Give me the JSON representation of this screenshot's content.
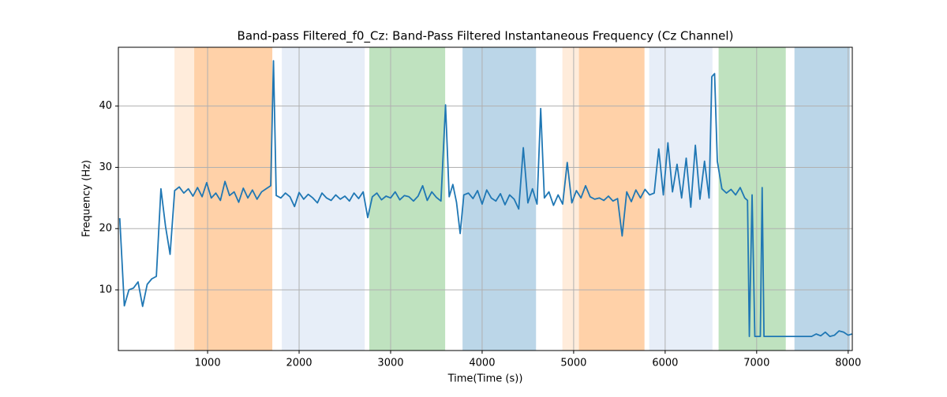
{
  "chart_data": {
    "type": "line",
    "title": "Band-pass Filtered_f0_Cz: Band-Pass Filtered Instantaneous Frequency (Cz Channel)",
    "x_label": "Time(Time (s))",
    "y_label": "Frequency (Hz)",
    "xlim": [
      25,
      8045
    ],
    "ylim": [
      0.1,
      49.6
    ],
    "xticks": [
      1000,
      2000,
      3000,
      4000,
      5000,
      6000,
      7000,
      8000
    ],
    "yticks": [
      10,
      20,
      30,
      40
    ],
    "grid": true,
    "color": "#1f77b4",
    "bands": [
      {
        "start": 638,
        "end": 1707,
        "color": "#ff7f0e",
        "opacity": 0.15
      },
      {
        "start": 854,
        "end": 1707,
        "color": "#ff7f0e",
        "opacity": 0.25
      },
      {
        "start": 1811,
        "end": 2717,
        "color": "#aec7e8",
        "opacity": 0.3
      },
      {
        "start": 2767,
        "end": 3596,
        "color": "#2ca02c",
        "opacity": 0.3
      },
      {
        "start": 3786,
        "end": 4589,
        "color": "#1f77b4",
        "opacity": 0.3
      },
      {
        "start": 4877,
        "end": 5774,
        "color": "#ff7f0e",
        "opacity": 0.15
      },
      {
        "start": 5058,
        "end": 5774,
        "color": "#ff7f0e",
        "opacity": 0.25
      },
      {
        "start": 5826,
        "end": 6517,
        "color": "#aec7e8",
        "opacity": 0.3
      },
      {
        "start": 6584,
        "end": 7318,
        "color": "#2ca02c",
        "opacity": 0.3
      },
      {
        "start": 7413,
        "end": 8018,
        "color": "#1f77b4",
        "opacity": 0.3
      }
    ],
    "x": [
      40,
      90,
      140,
      190,
      240,
      290,
      340,
      390,
      440,
      490,
      540,
      590,
      640,
      690,
      740,
      790,
      840,
      890,
      940,
      990,
      1040,
      1090,
      1140,
      1190,
      1240,
      1290,
      1340,
      1390,
      1440,
      1490,
      1540,
      1590,
      1640,
      1690,
      1720,
      1750,
      1800,
      1850,
      1900,
      1950,
      2000,
      2050,
      2100,
      2150,
      2200,
      2250,
      2300,
      2350,
      2400,
      2450,
      2500,
      2550,
      2600,
      2650,
      2700,
      2750,
      2800,
      2850,
      2900,
      2950,
      3000,
      3050,
      3100,
      3150,
      3200,
      3250,
      3300,
      3350,
      3400,
      3450,
      3500,
      3550,
      3600,
      3640,
      3680,
      3720,
      3760,
      3800,
      3850,
      3900,
      3950,
      4000,
      4050,
      4100,
      4150,
      4200,
      4250,
      4300,
      4350,
      4400,
      4450,
      4500,
      4550,
      4600,
      4640,
      4680,
      4730,
      4780,
      4830,
      4880,
      4930,
      4980,
      5030,
      5080,
      5130,
      5180,
      5230,
      5280,
      5330,
      5380,
      5430,
      5480,
      5530,
      5580,
      5630,
      5680,
      5730,
      5780,
      5830,
      5880,
      5930,
      5980,
      6030,
      6080,
      6130,
      6180,
      6230,
      6280,
      6330,
      6380,
      6430,
      6480,
      6510,
      6540,
      6570,
      6620,
      6670,
      6720,
      6770,
      6820,
      6870,
      6900,
      6920,
      6950,
      6980,
      7040,
      7060,
      7080,
      7200,
      7400,
      7600,
      7650,
      7700,
      7750,
      7800,
      7850,
      7900,
      7950,
      8000,
      8040
    ],
    "values": [
      21.7,
      7.4,
      10.0,
      10.3,
      11.3,
      7.3,
      10.9,
      11.8,
      12.2,
      26.5,
      20.4,
      15.8,
      26.2,
      26.8,
      25.8,
      26.5,
      25.3,
      26.7,
      25.2,
      27.5,
      25.0,
      25.8,
      24.6,
      27.7,
      25.4,
      26.0,
      24.3,
      26.6,
      25.0,
      26.3,
      24.8,
      26.0,
      26.5,
      27.0,
      47.4,
      25.4,
      25.0,
      25.8,
      25.2,
      23.6,
      25.9,
      24.8,
      25.6,
      25.0,
      24.2,
      25.8,
      25.0,
      24.6,
      25.5,
      24.8,
      25.3,
      24.5,
      25.8,
      24.9,
      26.0,
      21.8,
      25.2,
      25.8,
      24.7,
      25.3,
      25.0,
      26.0,
      24.7,
      25.4,
      25.2,
      24.5,
      25.3,
      27.0,
      24.6,
      26.0,
      25.1,
      24.5,
      40.2,
      25.2,
      27.2,
      24.3,
      19.2,
      25.5,
      25.8,
      24.9,
      26.2,
      24.0,
      26.3,
      25.0,
      24.5,
      25.7,
      23.9,
      25.5,
      24.8,
      23.2,
      33.2,
      24.2,
      26.5,
      24.0,
      39.6,
      25.0,
      26.0,
      23.8,
      25.5,
      24.0,
      30.8,
      24.2,
      26.2,
      25.0,
      27.0,
      25.2,
      24.8,
      25.0,
      24.6,
      25.3,
      24.5,
      24.9,
      18.8,
      26.0,
      24.4,
      26.3,
      25.0,
      26.4,
      25.5,
      25.8,
      33.0,
      25.5,
      34.0,
      26.0,
      30.5,
      25.0,
      31.5,
      23.5,
      33.6,
      24.8,
      31.0,
      25.0,
      44.8,
      45.3,
      31.0,
      26.5,
      25.8,
      26.4,
      25.5,
      26.7,
      25.0,
      24.6,
      2.4,
      25.5,
      2.4,
      2.4,
      26.7,
      2.4,
      2.4,
      2.4,
      2.4,
      2.8,
      2.5,
      3.1,
      2.4,
      2.6,
      3.3,
      3.1,
      2.6,
      2.8
    ]
  }
}
